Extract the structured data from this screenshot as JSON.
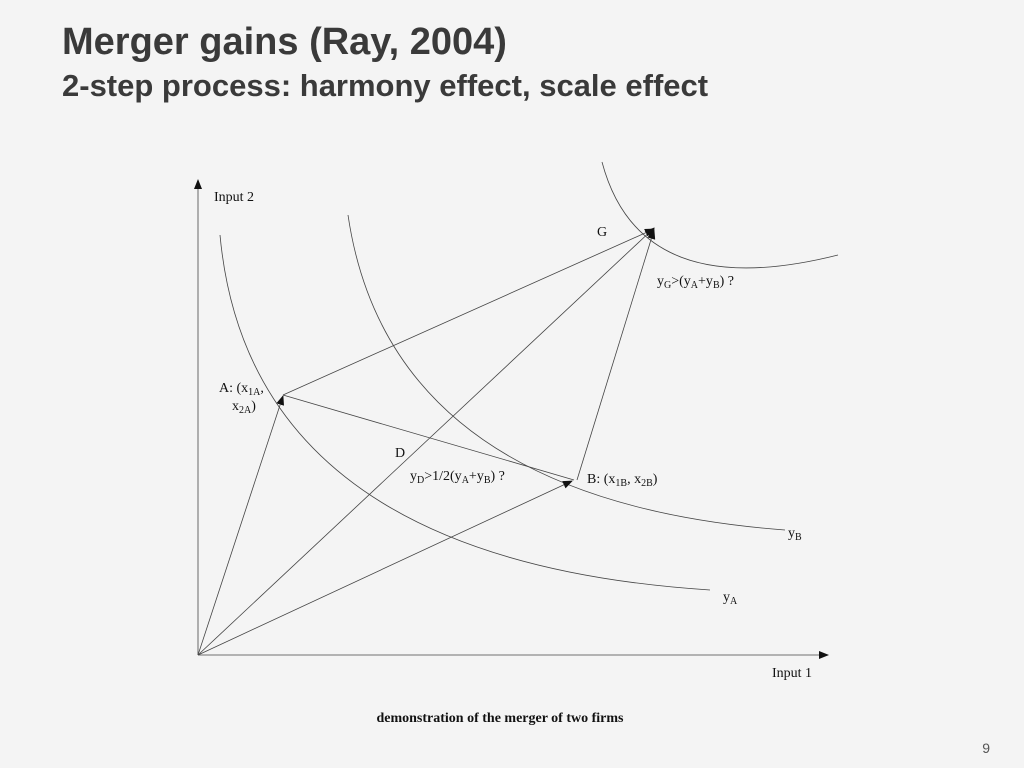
{
  "header": {
    "title": "Merger gains (Ray, 2004)",
    "subtitle": "2-step process: harmony effect, scale effect"
  },
  "diagram": {
    "y_axis_label": "Input 2",
    "x_axis_label": "Input 1",
    "point_g": "G",
    "point_d": "D",
    "label_g": [
      "y",
      "G",
      ">(y",
      "A",
      "+y",
      "B",
      ") ?"
    ],
    "label_a_line1": [
      "A: (x",
      "1A",
      ","
    ],
    "label_a_line2": [
      "x",
      "2A",
      ")"
    ],
    "label_b": [
      "B: (x",
      "1B",
      ", x",
      "2B",
      ")"
    ],
    "label_d": [
      "y",
      "D",
      ">1/2(y",
      "A",
      "+y",
      "B",
      ") ?"
    ],
    "curve_b_label": [
      "y",
      "B"
    ],
    "curve_a_label": [
      "y",
      "A"
    ],
    "caption": "demonstration of the merger of two firms"
  },
  "page_number": 9
}
